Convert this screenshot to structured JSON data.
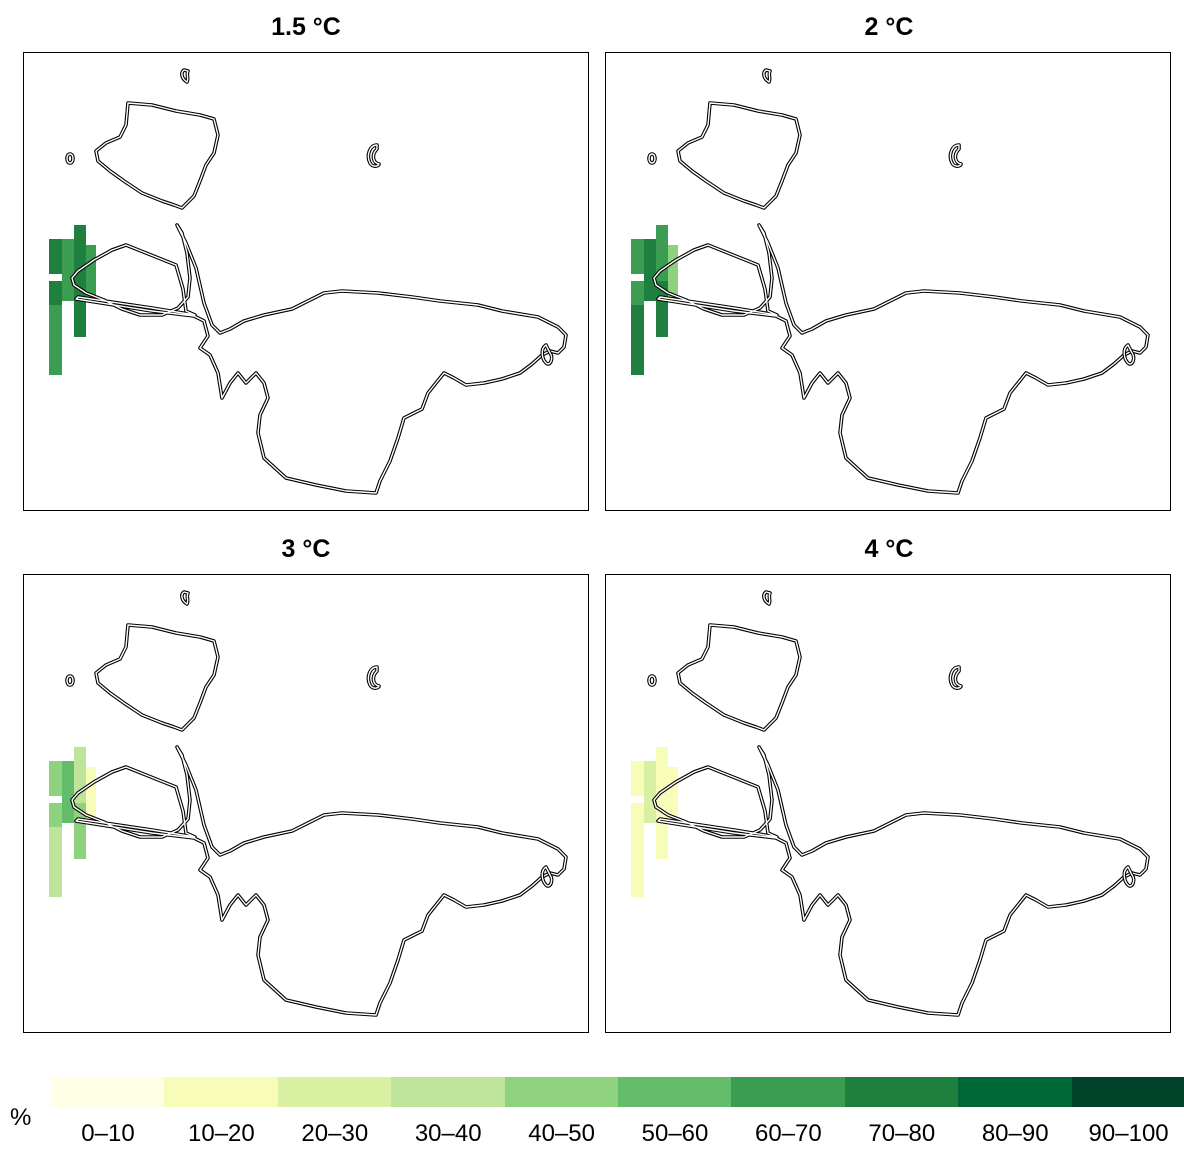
{
  "panels": [
    {
      "title": "1.5 °C",
      "classes": [
        7,
        6,
        7,
        7,
        7,
        6,
        6
      ]
    },
    {
      "title": "2 °C",
      "classes": [
        6,
        7,
        6,
        7,
        6,
        7,
        4
      ]
    },
    {
      "title": "3 °C",
      "classes": [
        4,
        5,
        3,
        4,
        4,
        3,
        1
      ]
    },
    {
      "title": "4 °C",
      "classes": [
        1,
        2,
        1,
        1,
        1,
        1,
        1
      ]
    }
  ],
  "legend": {
    "unit": "%",
    "items": [
      {
        "label": "0–10",
        "color": "#ffffe5"
      },
      {
        "label": "10–20",
        "color": "#f7fcb9"
      },
      {
        "label": "20–30",
        "color": "#d9f0a3"
      },
      {
        "label": "30–40",
        "color": "#bde49a"
      },
      {
        "label": "40–50",
        "color": "#8ed17e"
      },
      {
        "label": "50–60",
        "color": "#62bc6a"
      },
      {
        "label": "60–70",
        "color": "#3a9d52"
      },
      {
        "label": "70–80",
        "color": "#1f7f3e"
      },
      {
        "label": "80–90",
        "color": "#006837"
      },
      {
        "label": "90–100",
        "color": "#00432a"
      }
    ]
  }
}
